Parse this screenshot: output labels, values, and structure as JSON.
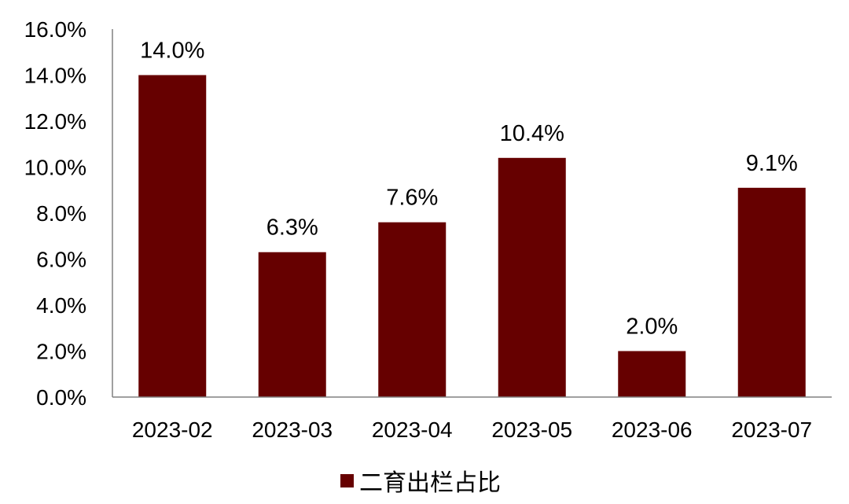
{
  "chart_data": {
    "type": "bar",
    "categories": [
      "2023-02",
      "2023-03",
      "2023-04",
      "2023-05",
      "2023-06",
      "2023-07"
    ],
    "series": [
      {
        "name": "二育出栏占比",
        "values": [
          14.0,
          6.3,
          7.6,
          10.4,
          2.0,
          9.1
        ],
        "value_labels": [
          "14.0%",
          "6.3%",
          "7.6%",
          "10.4%",
          "2.0%",
          "9.1%"
        ],
        "color": "#660000"
      }
    ],
    "yticks": [
      "0.0%",
      "2.0%",
      "4.0%",
      "6.0%",
      "8.0%",
      "10.0%",
      "12.0%",
      "14.0%",
      "16.0%"
    ],
    "ylim": [
      0,
      16
    ],
    "grid": false,
    "legend_position": "bottom",
    "axis_color": "#808080"
  }
}
